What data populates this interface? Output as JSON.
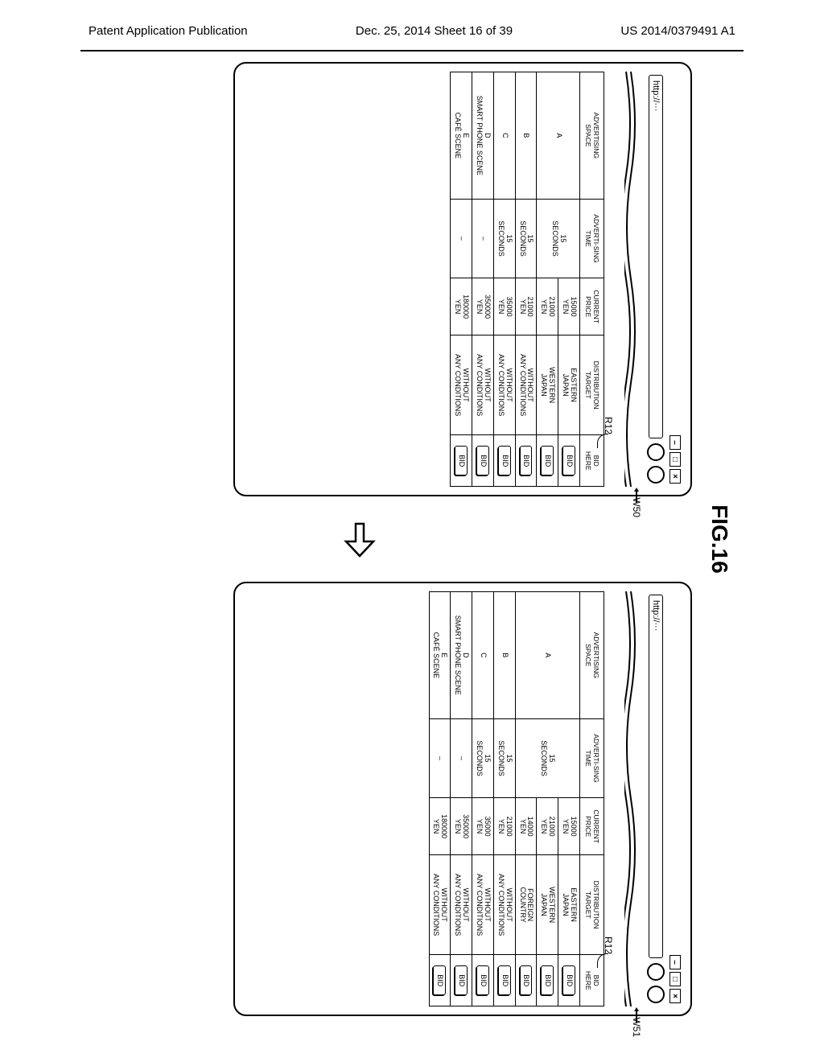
{
  "header": {
    "left": "Patent Application Publication",
    "center": "Dec. 25, 2014  Sheet 16 of 39",
    "right": "US 2014/0379491 A1"
  },
  "figure_label": "FIG.16",
  "url_text": "http://···",
  "ref_r12": "R12",
  "ref_w50": "W50",
  "ref_w51": "W51",
  "columns": [
    "ADVERTISING SPACE",
    "ADVERTI-SING TIME",
    "CURRENT PRICE",
    "DISTRIBUTION TARGET",
    "BID HERE"
  ],
  "bid_label": "BID",
  "table_left": [
    {
      "space": "A",
      "rowspan": 2,
      "time": "15 SECONDS",
      "t_rowspan": 2,
      "price": "15000 YEN",
      "target": "EASTERN JAPAN"
    },
    {
      "price": "21000 YEN",
      "target": "WESTERN JAPAN"
    },
    {
      "space": "B",
      "time": "15 SECONDS",
      "price": "21000 YEN",
      "target": "WITHOUT ANY CONDITIONS"
    },
    {
      "space": "C",
      "time": "15 SECONDS",
      "price": "35000 YEN",
      "target": "WITHOUT ANY CONDITIONS"
    },
    {
      "space": "D\nSMART PHONE SCENE",
      "time": "–",
      "price": "350000 YEN",
      "target": "WITHOUT ANY CONDITIONS"
    },
    {
      "space": "E\nCAFÉ SCENE",
      "time": "–",
      "price": "180000 YEN",
      "target": "WITHOUT ANY CONDITIONS"
    }
  ],
  "table_right": [
    {
      "space": "A",
      "rowspan": 3,
      "time": "15 SECONDS",
      "t_rowspan": 3,
      "price": "15000 YEN",
      "target": "EASTERN JAPAN"
    },
    {
      "price": "21000 YEN",
      "target": "WESTERN JAPAN"
    },
    {
      "price": "14000 YEN",
      "target": "FOREIGN COUNTRY"
    },
    {
      "space": "B",
      "time": "15 SECONDS",
      "price": "21000 YEN",
      "target": "WITHOUT ANY CONDITIONS"
    },
    {
      "space": "C",
      "time": "15 SECONDS",
      "price": "35000 YEN",
      "target": "WITHOUT ANY CONDITIONS"
    },
    {
      "space": "D\nSMART PHONE SCENE",
      "time": "–",
      "price": "350000 YEN",
      "target": "WITHOUT ANY CONDITIONS"
    },
    {
      "space": "E\nCAFÉ SCENE",
      "time": "–",
      "price": "180000 YEN",
      "target": "WITHOUT ANY CONDITIONS"
    }
  ]
}
